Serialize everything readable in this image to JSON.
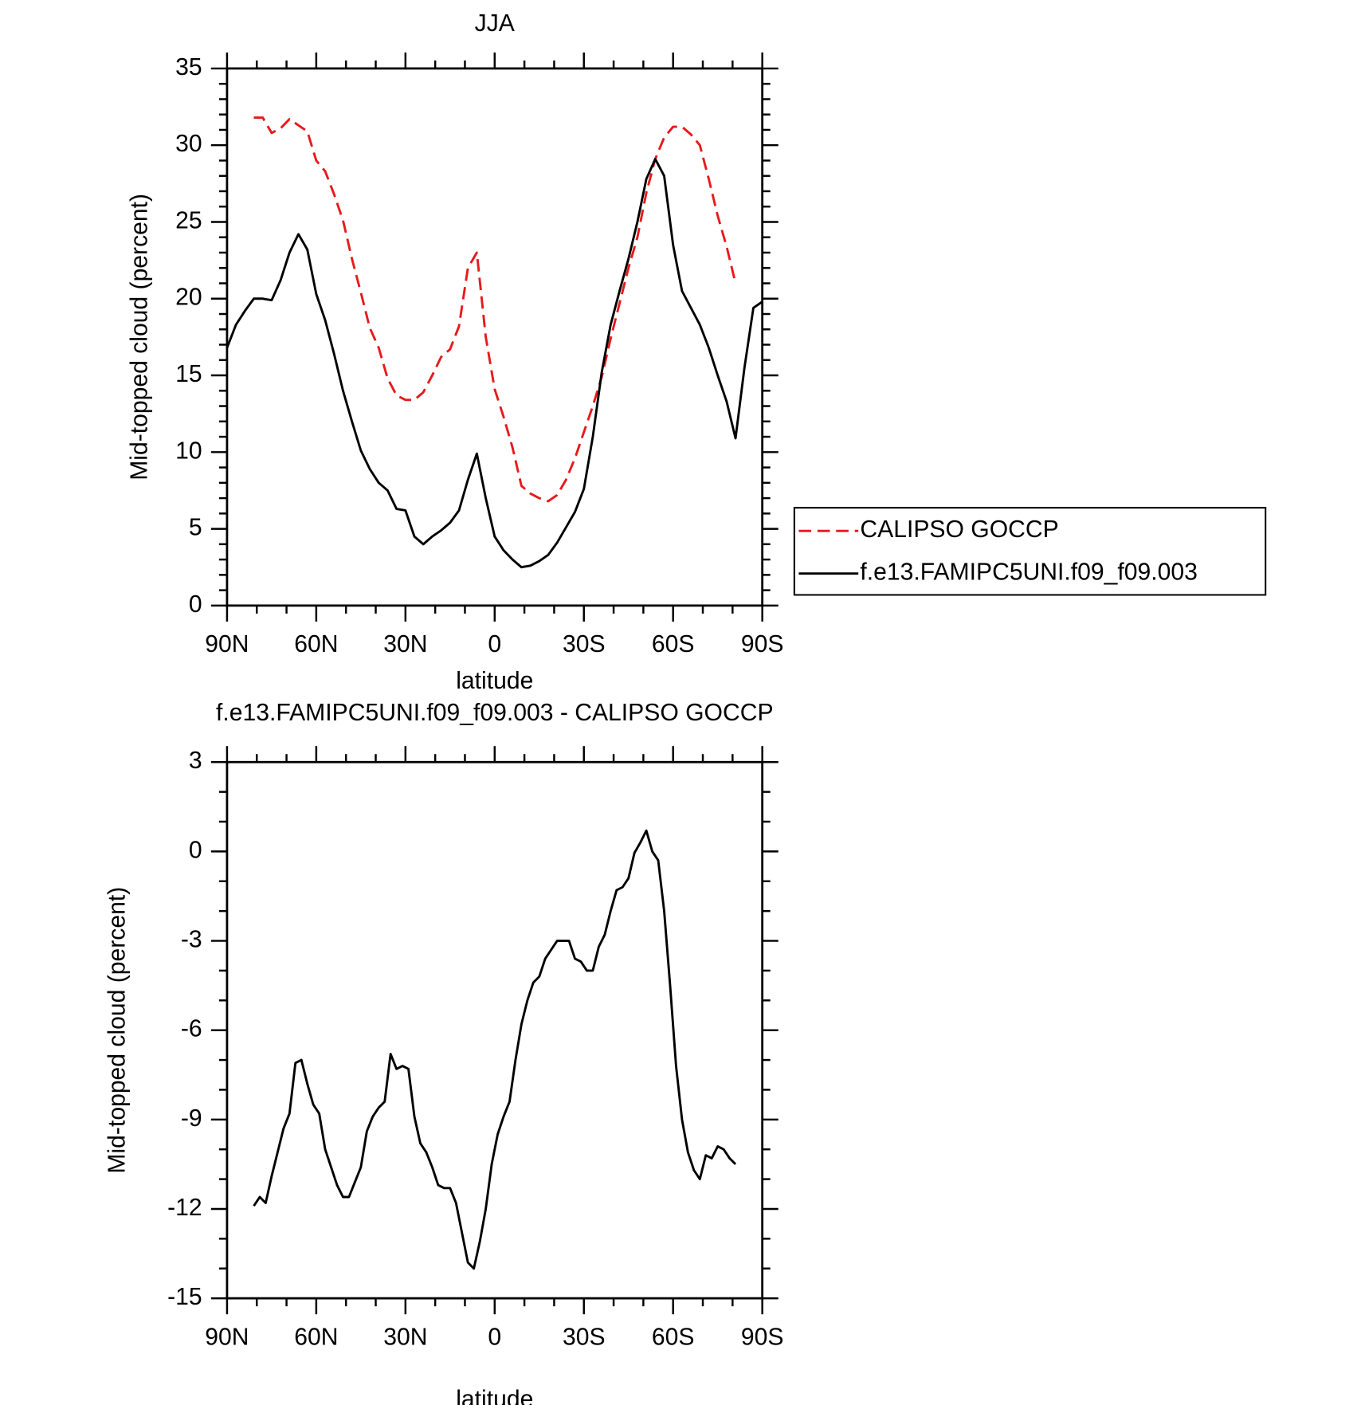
{
  "chart_data": [
    {
      "type": "line",
      "title": "JJA",
      "xlabel": "latitude",
      "ylabel": "Mid-topped cloud (percent)",
      "x": [
        90,
        87,
        84,
        81,
        78,
        75,
        72,
        69,
        66,
        63,
        60,
        57,
        54,
        51,
        48,
        45,
        42,
        39,
        36,
        33,
        30,
        27,
        24,
        21,
        18,
        15,
        12,
        9,
        6,
        3,
        0,
        -3,
        -6,
        -9,
        -12,
        -15,
        -18,
        -21,
        -24,
        -27,
        -30,
        -33,
        -36,
        -39,
        -42,
        -45,
        -48,
        -51,
        -54,
        -57,
        -60,
        -63,
        -66,
        -69,
        -72,
        -75,
        -78,
        -81,
        -84,
        -87,
        -90
      ],
      "series": [
        {
          "name": "CALIPSO GOCCP",
          "color": "#e8191c",
          "dash": true,
          "values": [
            null,
            null,
            null,
            31.8,
            31.8,
            30.8,
            31.1,
            31.7,
            31.3,
            30.9,
            29.0,
            28.3,
            26.8,
            25.1,
            22.6,
            20.4,
            18.1,
            16.8,
            14.8,
            13.7,
            13.4,
            13.4,
            13.9,
            15.0,
            16.2,
            16.7,
            18.2,
            22.0,
            23.0,
            17.5,
            14.1,
            12.3,
            10.3,
            7.8,
            7.3,
            7.0,
            6.8,
            7.2,
            8.2,
            9.6,
            11.3,
            13.0,
            14.9,
            17.4,
            19.7,
            22.0,
            24.0,
            26.9,
            29.1,
            30.5,
            31.2,
            31.2,
            30.7,
            30.0,
            27.8,
            25.4,
            23.4,
            21.0,
            null,
            null,
            null
          ]
        },
        {
          "name": "f.e13.FAMIPC5UNI.f09_f09.003",
          "color": "#000000",
          "dash": false,
          "values": [
            16.8,
            18.3,
            19.2,
            20.0,
            20.0,
            19.9,
            21.2,
            23.0,
            24.2,
            23.2,
            20.3,
            18.6,
            16.4,
            14.0,
            12.0,
            10.1,
            8.9,
            8.0,
            7.5,
            6.3,
            6.2,
            4.5,
            4.0,
            4.5,
            4.9,
            5.4,
            6.2,
            8.2,
            9.9,
            7.0,
            4.5,
            3.6,
            3.0,
            2.5,
            2.6,
            2.9,
            3.3,
            4.1,
            5.1,
            6.1,
            7.6,
            11.0,
            15.2,
            18.3,
            20.5,
            22.6,
            25.0,
            27.8,
            29.1,
            28.0,
            23.5,
            20.5,
            19.4,
            18.3,
            16.8,
            15.0,
            13.3,
            10.9,
            15.5,
            19.4,
            19.8
          ]
        }
      ],
      "xlim": [
        90,
        -90
      ],
      "ylim": [
        0,
        35
      ],
      "xticks": [
        {
          "value": 90,
          "label": "90N"
        },
        {
          "value": 60,
          "label": "60N"
        },
        {
          "value": 30,
          "label": "30N"
        },
        0,
        {
          "value": -30,
          "label": "30S"
        },
        {
          "value": -60,
          "label": "60S"
        },
        {
          "value": -90,
          "label": "90S"
        }
      ],
      "yticks": [
        0,
        5,
        10,
        15,
        20,
        25,
        30,
        35
      ],
      "legend": "right"
    },
    {
      "type": "line",
      "title": "f.e13.FAMIPC5UNI.f09_f09.003 - CALIPSO GOCCP",
      "xlabel": "latitude",
      "ylabel": "Mid-topped cloud (percent)",
      "x": [
        81,
        79,
        77,
        75,
        73,
        71,
        69,
        67,
        65,
        63,
        61,
        59,
        57,
        55,
        53,
        51,
        49,
        47,
        45,
        43,
        41,
        39,
        37,
        35,
        33,
        31,
        29,
        27,
        25,
        23,
        21,
        19,
        17,
        15,
        13,
        11,
        9,
        7,
        5,
        3,
        1,
        -1,
        -3,
        -5,
        -7,
        -9,
        -11,
        -13,
        -15,
        -17,
        -19,
        -21,
        -23,
        -25,
        -27,
        -29,
        -31,
        -33,
        -35,
        -37,
        -39,
        -41,
        -43,
        -45,
        -47,
        -49,
        -51,
        -53,
        -55,
        -57,
        -59,
        -61,
        -63,
        -65,
        -67,
        -69,
        -71,
        -73,
        -75,
        -77,
        -79,
        -81
      ],
      "series": [
        {
          "color": "#000000",
          "dash": false,
          "values": [
            -11.9,
            -11.6,
            -11.8,
            -10.9,
            -10.1,
            -9.3,
            -8.8,
            -7.1,
            -7.0,
            -7.8,
            -8.5,
            -8.8,
            -10.0,
            -10.6,
            -11.2,
            -11.6,
            -11.6,
            -11.1,
            -10.6,
            -9.4,
            -8.9,
            -8.6,
            -8.4,
            -6.8,
            -7.3,
            -7.2,
            -7.3,
            -8.9,
            -9.8,
            -10.1,
            -10.6,
            -11.2,
            -11.3,
            -11.3,
            -11.8,
            -12.8,
            -13.8,
            -14.0,
            -13.1,
            -12.0,
            -10.5,
            -9.5,
            -8.9,
            -8.4,
            -7.0,
            -5.8,
            -5.0,
            -4.4,
            -4.2,
            -3.6,
            -3.3,
            -3.0,
            -3.0,
            -3.0,
            -3.6,
            -3.7,
            -4.0,
            -4.0,
            -3.2,
            -2.8,
            -2.0,
            -1.3,
            -1.2,
            -0.9,
            -0.05,
            0.3,
            0.7,
            0.0,
            -0.3,
            -2.0,
            -4.5,
            -7.2,
            -9.0,
            -10.1,
            -10.7,
            -11.0,
            -10.2,
            -10.3,
            -9.9,
            -10.0,
            -10.3,
            -10.5
          ]
        }
      ],
      "xlim": [
        90,
        -90
      ],
      "ylim": [
        -15,
        3
      ],
      "xticks": [
        {
          "value": 90,
          "label": "90N"
        },
        {
          "value": 60,
          "label": "60N"
        },
        {
          "value": 30,
          "label": "30N"
        },
        0,
        {
          "value": -30,
          "label": "30S"
        },
        {
          "value": -60,
          "label": "60S"
        },
        {
          "value": -90,
          "label": "90S"
        }
      ],
      "yticks": [
        -15,
        -12,
        -9,
        -6,
        -3,
        0,
        3
      ]
    }
  ]
}
